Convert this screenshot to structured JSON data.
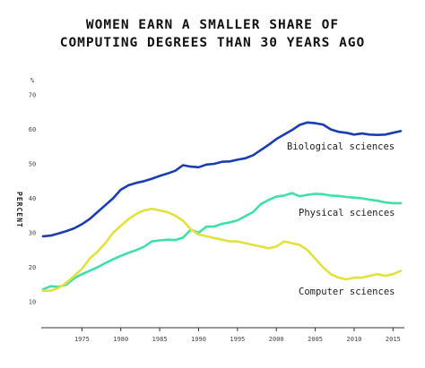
{
  "title_line1": "WOMEN EARN A SMALLER SHARE OF",
  "title_line2": "COMPUTING DEGREES THAN 30 YEARS AGO",
  "chart_data": {
    "type": "line",
    "ylabel": "PERCENT",
    "yunit": "%",
    "ylim": [
      10,
      70
    ],
    "yticks": [
      10,
      20,
      30,
      40,
      50,
      60,
      70
    ],
    "xlim": [
      1970,
      2016
    ],
    "xticks": [
      1975,
      1980,
      1985,
      1990,
      1995,
      2000,
      2005,
      2010,
      2015
    ],
    "grid": false,
    "series": [
      {
        "name": "Biological sciences",
        "color": "#1a3db0",
        "x": [
          1970,
          1971,
          1972,
          1973,
          1974,
          1975,
          1976,
          1977,
          1978,
          1979,
          1980,
          1981,
          1982,
          1983,
          1984,
          1985,
          1986,
          1987,
          1988,
          1989,
          1990,
          1991,
          1992,
          1993,
          1994,
          1995,
          1996,
          1997,
          1998,
          1999,
          2000,
          2001,
          2002,
          2003,
          2004,
          2005,
          2006,
          2007,
          2008,
          2009,
          2010,
          2011,
          2012,
          2013,
          2014,
          2015,
          2016
        ],
        "values": [
          29,
          29.2,
          29.8,
          30.5,
          31.3,
          32.5,
          34,
          36,
          38,
          40,
          42.5,
          43.8,
          44.5,
          45,
          45.7,
          46.5,
          47.2,
          48,
          49.6,
          49.2,
          49,
          49.8,
          50,
          50.6,
          50.7,
          51.2,
          51.6,
          52.5,
          54,
          55.5,
          57.2,
          58.5,
          59.8,
          61.3,
          62,
          61.8,
          61.4,
          60,
          59.3,
          59,
          58.5,
          58.8,
          58.5,
          58.4,
          58.5,
          59,
          59.5
        ]
      },
      {
        "name": "Physical sciences",
        "color": "#3ee0a8",
        "x": [
          1970,
          1971,
          1972,
          1973,
          1974,
          1975,
          1976,
          1977,
          1978,
          1979,
          1980,
          1981,
          1982,
          1983,
          1984,
          1985,
          1986,
          1987,
          1988,
          1989,
          1990,
          1991,
          1992,
          1993,
          1994,
          1995,
          1996,
          1997,
          1998,
          1999,
          2000,
          2001,
          2002,
          2003,
          2004,
          2005,
          2006,
          2007,
          2008,
          2009,
          2010,
          2011,
          2012,
          2013,
          2014,
          2015,
          2016
        ],
        "values": [
          13.6,
          14.5,
          14.3,
          15,
          16.8,
          18,
          19,
          20,
          21.2,
          22.3,
          23.3,
          24.2,
          25,
          26,
          27.5,
          27.8,
          28,
          27.9,
          28.6,
          30.9,
          30,
          31.8,
          31.8,
          32.6,
          33,
          33.6,
          34.8,
          36,
          38.3,
          39.5,
          40.5,
          40.8,
          41.5,
          40.6,
          41,
          41.3,
          41.2,
          40.8,
          40.7,
          40.4,
          40.2,
          40,
          39.6,
          39.3,
          38.8,
          38.6,
          38.6
        ]
      },
      {
        "name": "Computer sciences",
        "color": "#e2e23a",
        "x": [
          1970,
          1971,
          1972,
          1973,
          1974,
          1975,
          1976,
          1977,
          1978,
          1979,
          1980,
          1981,
          1982,
          1983,
          1984,
          1985,
          1986,
          1987,
          1988,
          1989,
          1990,
          1991,
          1992,
          1993,
          1994,
          1995,
          1996,
          1997,
          1998,
          1999,
          2000,
          2001,
          2002,
          2003,
          2004,
          2005,
          2006,
          2007,
          2008,
          2009,
          2010,
          2011,
          2012,
          2013,
          2014,
          2015,
          2016
        ],
        "values": [
          13.2,
          13.2,
          14,
          15.5,
          17.5,
          19.5,
          22.5,
          24.5,
          27,
          30,
          32,
          34,
          35.5,
          36.5,
          37,
          36.5,
          36,
          35,
          33.5,
          31,
          29.5,
          29,
          28.5,
          28,
          27.5,
          27.5,
          27,
          26.5,
          26,
          25.5,
          26,
          27.5,
          27,
          26.5,
          25,
          22.5,
          20,
          18,
          17,
          16.5,
          17,
          17,
          17.5,
          18,
          17.5,
          18,
          19
        ]
      }
    ]
  }
}
